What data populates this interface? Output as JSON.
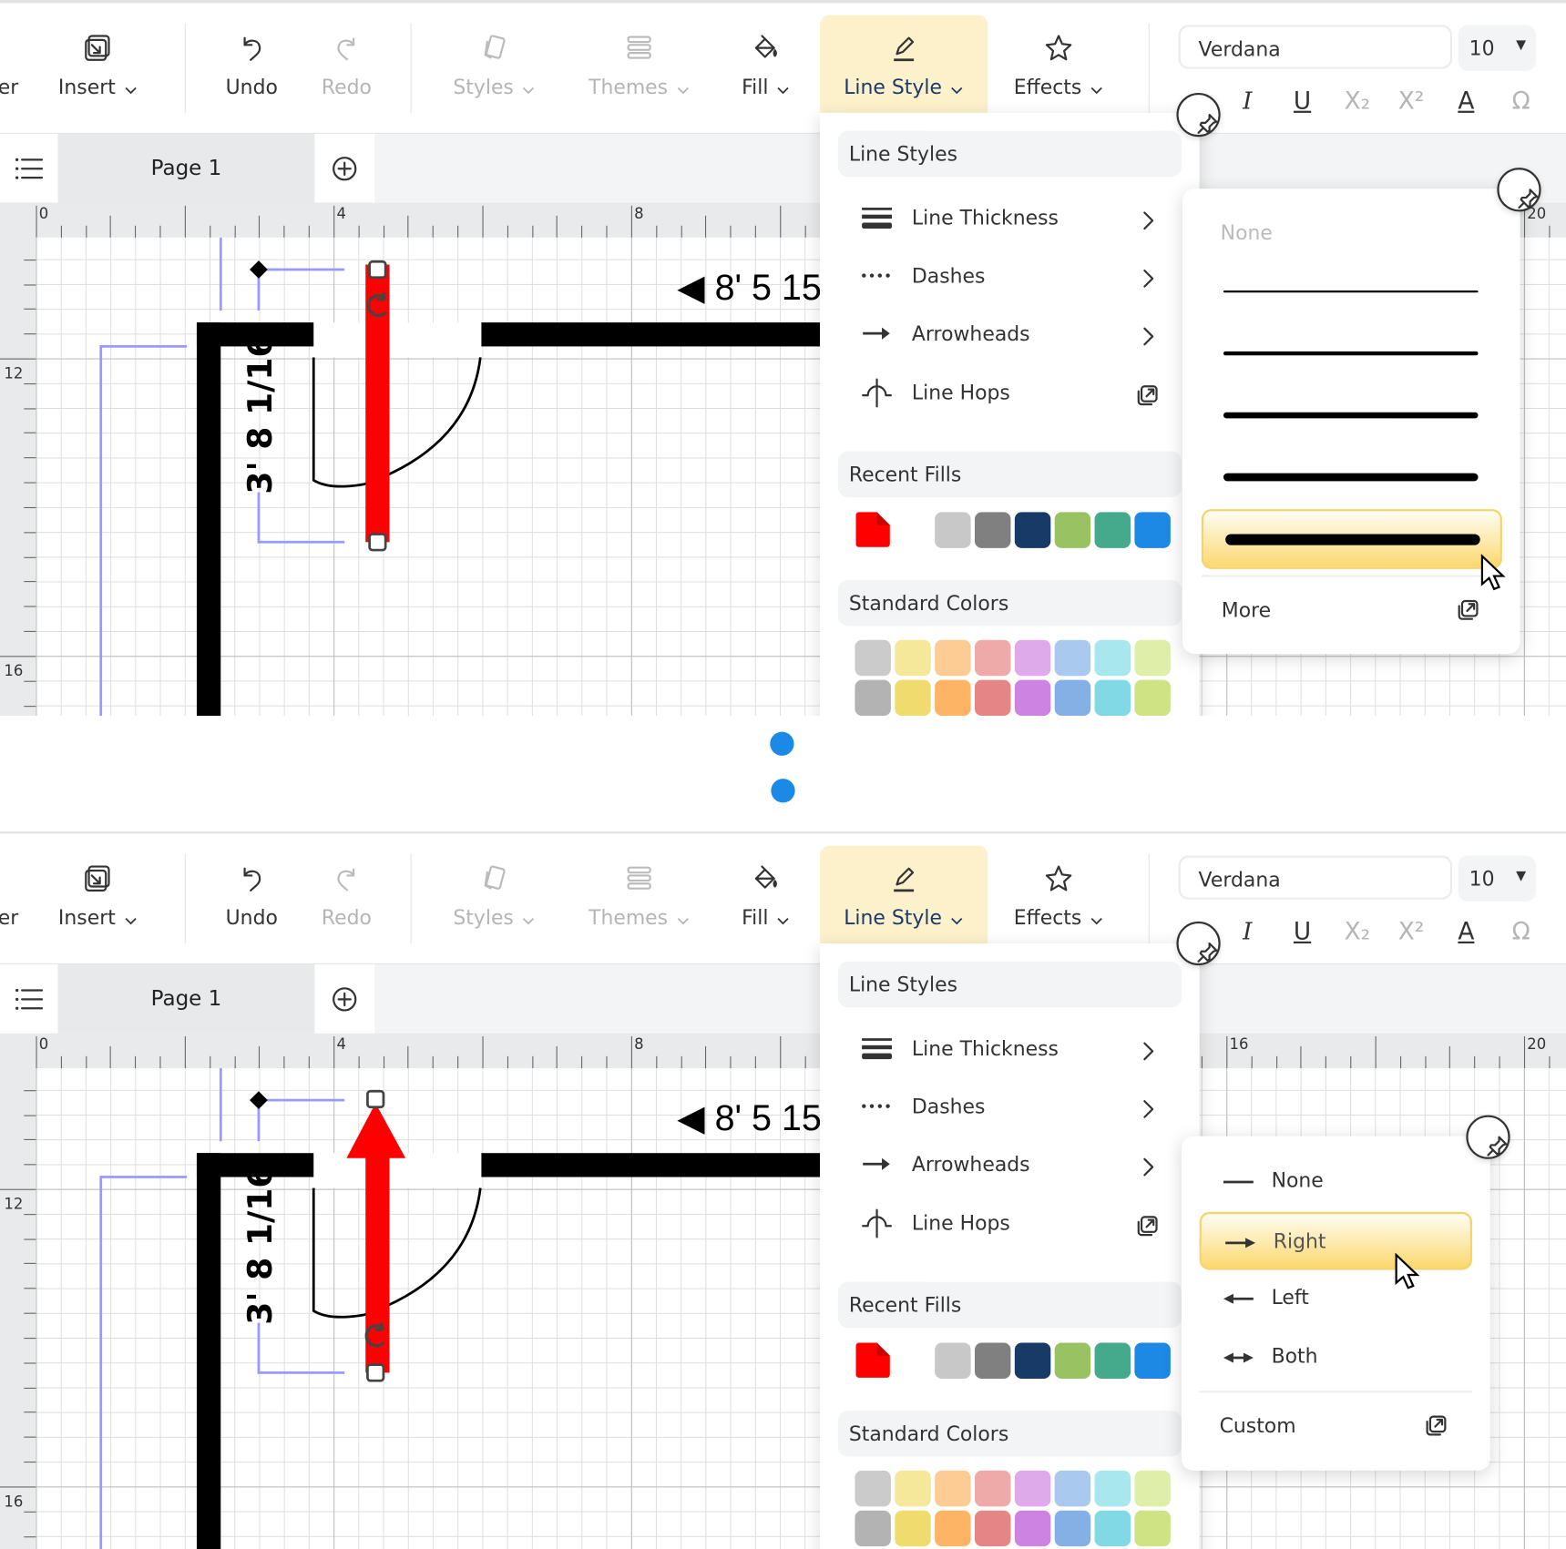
{
  "toolbar": {
    "cut_label": "er",
    "buttons": [
      {
        "id": "insert",
        "label": "Insert",
        "icon": "insert-icon",
        "dropdown": true,
        "disabled": false
      },
      {
        "id": "undo",
        "label": "Undo",
        "icon": "undo-icon",
        "dropdown": false,
        "disabled": false
      },
      {
        "id": "redo",
        "label": "Redo",
        "icon": "redo-icon",
        "dropdown": false,
        "disabled": true
      },
      {
        "id": "styles",
        "label": "Styles",
        "icon": "styles-icon",
        "dropdown": true,
        "disabled": true
      },
      {
        "id": "themes",
        "label": "Themes",
        "icon": "themes-icon",
        "dropdown": true,
        "disabled": true
      },
      {
        "id": "fill",
        "label": "Fill",
        "icon": "paint-bucket-icon",
        "dropdown": true,
        "disabled": false
      },
      {
        "id": "line-style",
        "label": "Line Style",
        "icon": "pencil-icon",
        "dropdown": true,
        "disabled": false,
        "active": true
      },
      {
        "id": "effects",
        "label": "Effects",
        "icon": "star-icon",
        "dropdown": true,
        "disabled": false
      }
    ],
    "font": "Verdana",
    "font_size": "10",
    "format_icons": [
      {
        "name": "italic-icon",
        "glyph": "I",
        "disabled": false
      },
      {
        "name": "underline-icon",
        "glyph": "U",
        "disabled": false
      },
      {
        "name": "subscript-icon",
        "glyph": "X₂",
        "disabled": true
      },
      {
        "name": "superscript-icon",
        "glyph": "X²",
        "disabled": true
      },
      {
        "name": "font-color-icon",
        "glyph": "A",
        "disabled": false
      },
      {
        "name": "special-character-icon",
        "glyph": "Ω",
        "disabled": true
      }
    ]
  },
  "pages": {
    "tab": "Page 1"
  },
  "canvas": {
    "dimension_vertical": "3' 8 1/16",
    "dimension_horizontal": "◀ 8' 5 15",
    "shape_color": "#ff0000",
    "wall_color": "#000000",
    "guide_color": "#9999ff"
  },
  "menu": {
    "header": "Line Styles",
    "items": [
      {
        "label": "Line Thickness",
        "icon": "line-thickness-icon",
        "end": "chevron-right-icon"
      },
      {
        "label": "Dashes",
        "icon": "dashes-icon",
        "end": "chevron-right-icon"
      },
      {
        "label": "Arrowheads",
        "icon": "arrowheads-icon",
        "end": "chevron-right-icon"
      },
      {
        "label": "Line Hops",
        "icon": "line-hops-icon",
        "end": "open-dialog-icon"
      }
    ],
    "recent_fills_header": "Recent Fills",
    "recent_fill_current": "#ff0000",
    "recent_fills": [
      "#c8c8c8",
      "#808080",
      "#173a66",
      "#99c262",
      "#45a98c",
      "#1e88e5"
    ],
    "standard_colors_header": "Standard Colors",
    "standard_colors": [
      [
        "#cbcbcb",
        "#f5e89b",
        "#fdcc95",
        "#eeaaa9",
        "#deaaea",
        "#a9c9ee",
        "#a9e7ef",
        "#dfefaa"
      ],
      [
        "#b3b3b3",
        "#f0dc6e",
        "#fdb464",
        "#e68585",
        "#cd83e2",
        "#84b0e6",
        "#82d9e6",
        "#cfe384"
      ]
    ]
  },
  "panels": [
    {
      "ruler_top": [
        "0",
        "4",
        "8",
        "20"
      ],
      "ruler_left": [
        "12",
        "16"
      ],
      "shape": "line",
      "submenu": {
        "type": "line-thickness",
        "none_label": "None",
        "option_count": 5,
        "selected_index": 4,
        "more_label": "More"
      }
    },
    {
      "ruler_top": [
        "0",
        "4",
        "8",
        "16",
        "20"
      ],
      "ruler_left": [
        "12",
        "16"
      ],
      "shape": "arrow",
      "submenu": {
        "type": "arrowheads",
        "options": [
          {
            "label": "None",
            "icon": "no-arrow-icon"
          },
          {
            "label": "Right",
            "icon": "arrow-right-icon"
          },
          {
            "label": "Left",
            "icon": "arrow-left-icon"
          },
          {
            "label": "Both",
            "icon": "arrow-both-icon"
          }
        ],
        "selected": "Right",
        "custom_label": "Custom"
      }
    }
  ]
}
